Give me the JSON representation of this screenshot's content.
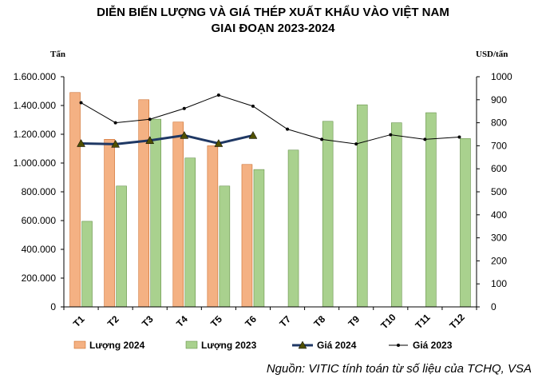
{
  "chart_data": {
    "type": "bar",
    "title_lines": [
      "DIỄN BIẾN LƯỢNG VÀ GIÁ THÉP XUẤT KHẨU VÀO VIỆT NAM",
      "GIAI ĐOẠN 2023-2024"
    ],
    "y_left_label": "Tấn",
    "y_right_label": "USD/tấn",
    "categories": [
      "T1",
      "T2",
      "T3",
      "T4",
      "T5",
      "T6",
      "T7",
      "T8",
      "T9",
      "T10",
      "T11",
      "T12"
    ],
    "y_left_ticks": [
      "0",
      "200.000",
      "400.000",
      "600.000",
      "800.000",
      "1.000.000",
      "1.200.000",
      "1.400.000",
      "1.600.000"
    ],
    "y_right_ticks": [
      "0",
      "100",
      "200",
      "300",
      "400",
      "500",
      "600",
      "700",
      "800",
      "900",
      "1000"
    ],
    "ylim_left": [
      0,
      1600000
    ],
    "ylim_right": [
      0,
      1000
    ],
    "grid": false,
    "legend_position": "bottom",
    "series": [
      {
        "name": "Lượng 2024",
        "kind": "bar",
        "axis": "left",
        "color": "#F4B183",
        "values": [
          1490000,
          1165000,
          1440000,
          1285000,
          1120000,
          990000,
          null,
          null,
          null,
          null,
          null,
          null
        ]
      },
      {
        "name": "Lượng 2023",
        "kind": "bar",
        "axis": "left",
        "color": "#A9D18E",
        "values": [
          595000,
          840000,
          1305000,
          1035000,
          840000,
          955000,
          1090000,
          1290000,
          1405000,
          1280000,
          1350000,
          1170000
        ]
      },
      {
        "name": "Giá 2024",
        "kind": "line",
        "axis": "right",
        "color": "#1F3864",
        "marker": "triangle",
        "values": [
          710,
          707,
          723,
          745,
          710,
          745,
          null,
          null,
          null,
          null,
          null,
          null
        ]
      },
      {
        "name": "Giá 2023",
        "kind": "line",
        "axis": "right",
        "color": "#000000",
        "marker": "dot",
        "values": [
          887,
          800,
          815,
          862,
          920,
          872,
          772,
          728,
          708,
          748,
          728,
          738
        ]
      }
    ],
    "source": "Nguồn: VITIC tính toán từ số liệu của TCHQ, VSA"
  }
}
